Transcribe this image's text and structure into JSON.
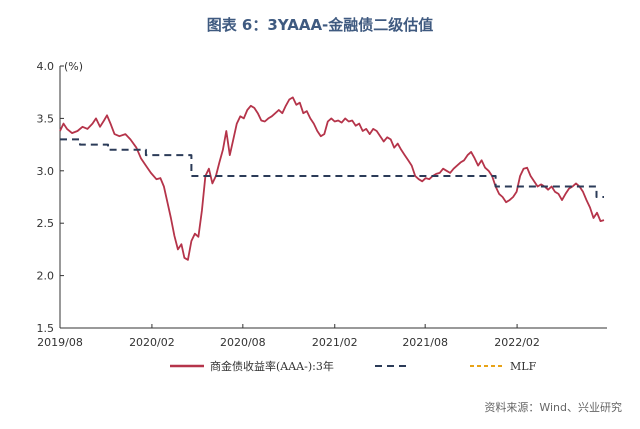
{
  "title": "图表 6：3YAAA-金融债二级估值",
  "source": "资料来源：Wind、兴业研究",
  "chart_data": {
    "type": "line",
    "unit_label": "(%)",
    "ylim": [
      1.5,
      4.0
    ],
    "yticks": [
      "1.5",
      "2.0",
      "2.5",
      "3.0",
      "3.5",
      "4.0"
    ],
    "xticks": [
      "2019/08",
      "2020/02",
      "2020/08",
      "2021/02",
      "2021/08",
      "2022/02"
    ],
    "series": [
      {
        "name": "商金债收益率(AAA-):3年",
        "color": "#b5344a",
        "style": "solid",
        "points": [
          [
            "2019-08-01",
            3.38
          ],
          [
            "2019-08-08",
            3.45
          ],
          [
            "2019-08-15",
            3.4
          ],
          [
            "2019-08-25",
            3.36
          ],
          [
            "2019-09-05",
            3.38
          ],
          [
            "2019-09-15",
            3.42
          ],
          [
            "2019-09-25",
            3.4
          ],
          [
            "2019-10-05",
            3.45
          ],
          [
            "2019-10-12",
            3.5
          ],
          [
            "2019-10-20",
            3.42
          ],
          [
            "2019-10-28",
            3.48
          ],
          [
            "2019-11-03",
            3.53
          ],
          [
            "2019-11-10",
            3.45
          ],
          [
            "2019-11-18",
            3.35
          ],
          [
            "2019-11-28",
            3.33
          ],
          [
            "2019-12-10",
            3.35
          ],
          [
            "2019-12-20",
            3.3
          ],
          [
            "2020-01-01",
            3.22
          ],
          [
            "2020-01-10",
            3.12
          ],
          [
            "2020-01-20",
            3.05
          ],
          [
            "2020-01-30",
            2.98
          ],
          [
            "2020-02-10",
            2.92
          ],
          [
            "2020-02-18",
            2.93
          ],
          [
            "2020-02-25",
            2.85
          ],
          [
            "2020-03-03",
            2.7
          ],
          [
            "2020-03-10",
            2.55
          ],
          [
            "2020-03-17",
            2.38
          ],
          [
            "2020-03-24",
            2.25
          ],
          [
            "2020-03-31",
            2.3
          ],
          [
            "2020-04-06",
            2.17
          ],
          [
            "2020-04-13",
            2.15
          ],
          [
            "2020-04-20",
            2.33
          ],
          [
            "2020-04-27",
            2.4
          ],
          [
            "2020-05-04",
            2.37
          ],
          [
            "2020-05-11",
            2.62
          ],
          [
            "2020-05-18",
            2.95
          ],
          [
            "2020-05-25",
            3.02
          ],
          [
            "2020-06-01",
            2.88
          ],
          [
            "2020-06-08",
            2.95
          ],
          [
            "2020-06-15",
            3.08
          ],
          [
            "2020-06-22",
            3.2
          ],
          [
            "2020-06-29",
            3.38
          ],
          [
            "2020-07-06",
            3.15
          ],
          [
            "2020-07-13",
            3.3
          ],
          [
            "2020-07-20",
            3.45
          ],
          [
            "2020-07-27",
            3.52
          ],
          [
            "2020-08-03",
            3.5
          ],
          [
            "2020-08-10",
            3.58
          ],
          [
            "2020-08-17",
            3.62
          ],
          [
            "2020-08-24",
            3.6
          ],
          [
            "2020-08-31",
            3.55
          ],
          [
            "2020-09-07",
            3.48
          ],
          [
            "2020-09-14",
            3.47
          ],
          [
            "2020-09-21",
            3.5
          ],
          [
            "2020-09-28",
            3.52
          ],
          [
            "2020-10-05",
            3.55
          ],
          [
            "2020-10-12",
            3.58
          ],
          [
            "2020-10-19",
            3.55
          ],
          [
            "2020-10-26",
            3.62
          ],
          [
            "2020-11-02",
            3.68
          ],
          [
            "2020-11-09",
            3.7
          ],
          [
            "2020-11-16",
            3.63
          ],
          [
            "2020-11-23",
            3.65
          ],
          [
            "2020-11-30",
            3.55
          ],
          [
            "2020-12-07",
            3.57
          ],
          [
            "2020-12-14",
            3.5
          ],
          [
            "2020-12-21",
            3.45
          ],
          [
            "2020-12-28",
            3.38
          ],
          [
            "2021-01-04",
            3.33
          ],
          [
            "2021-01-11",
            3.35
          ],
          [
            "2021-01-18",
            3.47
          ],
          [
            "2021-01-25",
            3.5
          ],
          [
            "2021-02-01",
            3.47
          ],
          [
            "2021-02-08",
            3.48
          ],
          [
            "2021-02-15",
            3.46
          ],
          [
            "2021-02-22",
            3.5
          ],
          [
            "2021-03-01",
            3.47
          ],
          [
            "2021-03-08",
            3.48
          ],
          [
            "2021-03-15",
            3.43
          ],
          [
            "2021-03-22",
            3.45
          ],
          [
            "2021-03-29",
            3.38
          ],
          [
            "2021-04-05",
            3.4
          ],
          [
            "2021-04-12",
            3.35
          ],
          [
            "2021-04-19",
            3.4
          ],
          [
            "2021-04-26",
            3.38
          ],
          [
            "2021-05-03",
            3.33
          ],
          [
            "2021-05-10",
            3.28
          ],
          [
            "2021-05-17",
            3.32
          ],
          [
            "2021-05-24",
            3.3
          ],
          [
            "2021-05-31",
            3.22
          ],
          [
            "2021-06-07",
            3.26
          ],
          [
            "2021-06-14",
            3.2
          ],
          [
            "2021-06-21",
            3.15
          ],
          [
            "2021-06-28",
            3.1
          ],
          [
            "2021-07-05",
            3.05
          ],
          [
            "2021-07-12",
            2.95
          ],
          [
            "2021-07-19",
            2.92
          ],
          [
            "2021-07-26",
            2.9
          ],
          [
            "2021-08-02",
            2.93
          ],
          [
            "2021-08-09",
            2.92
          ],
          [
            "2021-08-16",
            2.95
          ],
          [
            "2021-08-23",
            2.97
          ],
          [
            "2021-08-30",
            2.98
          ],
          [
            "2021-09-06",
            3.02
          ],
          [
            "2021-09-13",
            3.0
          ],
          [
            "2021-09-20",
            2.98
          ],
          [
            "2021-09-27",
            3.02
          ],
          [
            "2021-10-04",
            3.05
          ],
          [
            "2021-10-11",
            3.08
          ],
          [
            "2021-10-18",
            3.1
          ],
          [
            "2021-10-25",
            3.15
          ],
          [
            "2021-11-01",
            3.18
          ],
          [
            "2021-11-08",
            3.12
          ],
          [
            "2021-11-15",
            3.05
          ],
          [
            "2021-11-22",
            3.1
          ],
          [
            "2021-11-29",
            3.03
          ],
          [
            "2021-12-06",
            3.0
          ],
          [
            "2021-12-13",
            2.95
          ],
          [
            "2021-12-20",
            2.85
          ],
          [
            "2021-12-27",
            2.78
          ],
          [
            "2022-01-03",
            2.75
          ],
          [
            "2022-01-10",
            2.7
          ],
          [
            "2022-01-17",
            2.72
          ],
          [
            "2022-01-24",
            2.75
          ],
          [
            "2022-01-31",
            2.8
          ],
          [
            "2022-02-07",
            2.95
          ],
          [
            "2022-02-14",
            3.02
          ],
          [
            "2022-02-21",
            3.03
          ],
          [
            "2022-02-28",
            2.95
          ],
          [
            "2022-03-07",
            2.9
          ],
          [
            "2022-03-14",
            2.85
          ],
          [
            "2022-03-21",
            2.87
          ],
          [
            "2022-03-28",
            2.85
          ],
          [
            "2022-04-04",
            2.82
          ],
          [
            "2022-04-11",
            2.85
          ],
          [
            "2022-04-18",
            2.8
          ],
          [
            "2022-04-25",
            2.78
          ],
          [
            "2022-05-02",
            2.72
          ],
          [
            "2022-05-09",
            2.78
          ],
          [
            "2022-05-16",
            2.83
          ],
          [
            "2022-05-23",
            2.85
          ],
          [
            "2022-05-30",
            2.88
          ],
          [
            "2022-06-06",
            2.85
          ],
          [
            "2022-06-13",
            2.8
          ],
          [
            "2022-06-20",
            2.72
          ],
          [
            "2022-06-27",
            2.65
          ],
          [
            "2022-07-04",
            2.55
          ],
          [
            "2022-07-11",
            2.6
          ],
          [
            "2022-07-18",
            2.52
          ],
          [
            "2022-07-25",
            2.53
          ]
        ]
      },
      {
        "name": "",
        "color": "#2b3b58",
        "style": "dash",
        "points": [
          [
            "2019-08-01",
            3.3
          ],
          [
            "2019-09-10",
            3.3
          ],
          [
            "2019-09-10",
            3.25
          ],
          [
            "2019-11-05",
            3.25
          ],
          [
            "2019-11-05",
            3.2
          ],
          [
            "2020-01-20",
            3.2
          ],
          [
            "2020-01-20",
            3.15
          ],
          [
            "2020-04-20",
            3.15
          ],
          [
            "2020-04-20",
            2.95
          ],
          [
            "2021-12-20",
            2.95
          ],
          [
            "2021-12-20",
            2.85
          ],
          [
            "2022-07-10",
            2.85
          ],
          [
            "2022-07-10",
            2.75
          ],
          [
            "2022-07-25",
            2.75
          ]
        ]
      },
      {
        "name": "MLF",
        "color": "#e8a317",
        "style": "dash",
        "points": []
      }
    ]
  }
}
